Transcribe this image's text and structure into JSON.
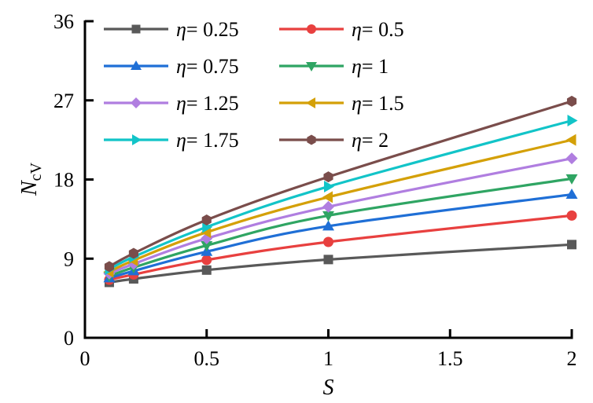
{
  "chart_data": {
    "type": "line",
    "title": "",
    "xlabel": "S",
    "ylabel": "N_cV",
    "ylabel_main": "N",
    "ylabel_sub": "cV",
    "xlim": [
      0,
      2
    ],
    "ylim": [
      0,
      36
    ],
    "xticks": [
      0,
      0.5,
      1,
      1.5,
      2
    ],
    "xtick_labels": [
      "0",
      "0.5",
      "1",
      "1.5",
      "2"
    ],
    "yticks": [
      0,
      9,
      18,
      27,
      36
    ],
    "ytick_labels": [
      "0",
      "9",
      "18",
      "27",
      "36"
    ],
    "grid": false,
    "legend_position": "upper-left, 2 columns",
    "x": [
      0.1,
      0.2,
      0.5,
      1,
      2
    ],
    "series": [
      {
        "name": "η= 0.25",
        "eta": "0.25",
        "color": "#595959",
        "marker": "square",
        "values": [
          6.3,
          6.7,
          7.7,
          8.9,
          10.6
        ]
      },
      {
        "name": "η= 0.5",
        "eta": "0.5",
        "color": "#e8403f",
        "marker": "circle",
        "values": [
          6.6,
          7.2,
          8.85,
          10.9,
          13.9
        ]
      },
      {
        "name": "η= 0.75",
        "eta": "0.75",
        "color": "#1f6fd6",
        "marker": "triangle-up",
        "values": [
          6.8,
          7.6,
          9.8,
          12.7,
          16.3
        ]
      },
      {
        "name": "η= 1",
        "eta": "1",
        "color": "#2fa563",
        "marker": "triangle-down",
        "values": [
          7.0,
          8.0,
          10.5,
          13.9,
          18.1
        ]
      },
      {
        "name": "η= 1.25",
        "eta": "1.25",
        "color": "#b07ee0",
        "marker": "diamond",
        "values": [
          7.3,
          8.4,
          11.3,
          14.9,
          20.4
        ]
      },
      {
        "name": "η= 1.5",
        "eta": "1.5",
        "color": "#d4a007",
        "marker": "triangle-left",
        "values": [
          7.5,
          8.8,
          12.0,
          16.0,
          22.5
        ]
      },
      {
        "name": "η= 1.75",
        "eta": "1.75",
        "color": "#12c4c8",
        "marker": "triangle-right",
        "values": [
          7.8,
          9.2,
          12.6,
          17.2,
          24.7
        ]
      },
      {
        "name": "η= 2",
        "eta": "2",
        "color": "#7a4d4b",
        "marker": "hexagon",
        "values": [
          8.1,
          9.6,
          13.4,
          18.3,
          26.9
        ]
      }
    ]
  }
}
